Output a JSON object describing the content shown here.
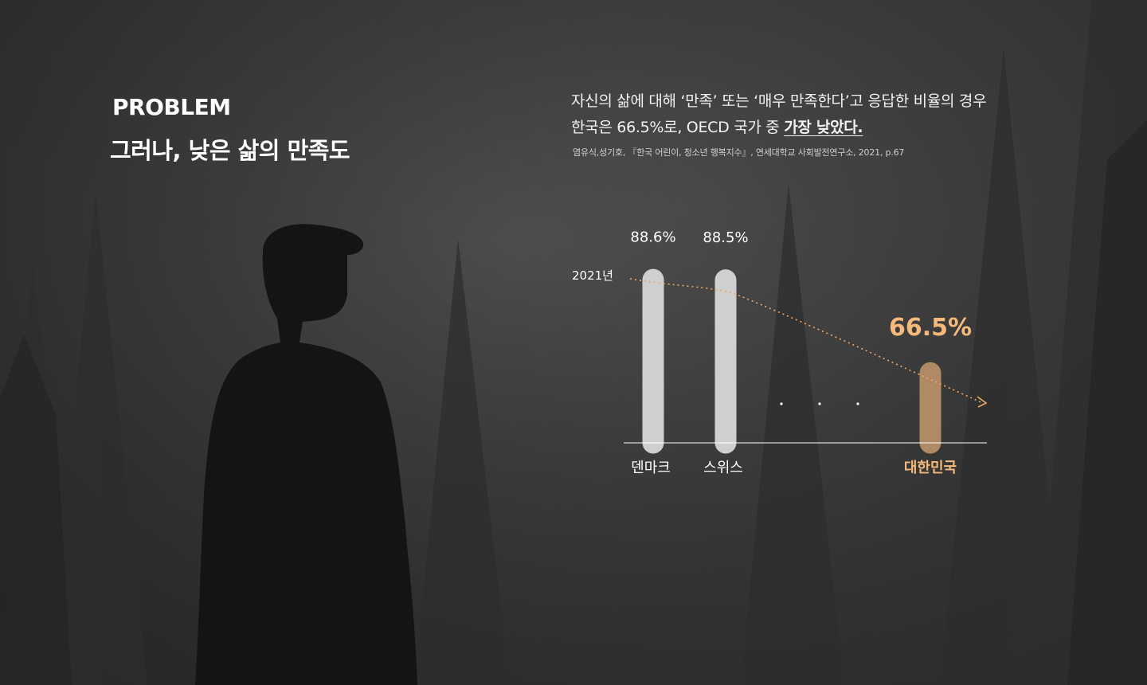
{
  "section": {
    "label": "PROBLEM",
    "title": "그러나, 낮은 삶의 만족도"
  },
  "description": {
    "line1": "자신의 삶에 대해 ‘만족’ 또는 ‘매우 만족한다’고 응답한 비율의 경우",
    "line2_prefix": "한국은 66.5%로, OECD 국가 중 ",
    "line2_emphasis": "가장 낮았다."
  },
  "source": "염유식,성기호, 『한국 어린이, 청소년 행복지수』, 연세대학교 사회발전연구소, 2021, p.67",
  "chart_data": {
    "type": "bar",
    "year_label": "2021년",
    "categories": [
      "덴마크",
      "스위스",
      "대한민국"
    ],
    "values": [
      88.6,
      88.5,
      66.5
    ],
    "value_labels": [
      "88.6%",
      "88.5%",
      "66.5%"
    ],
    "ellipsis": "· · ·",
    "highlight_index": 2,
    "colors": {
      "bar": "#cfcfcf",
      "highlight_bar": "#b08a64",
      "highlight_text": "#f5b97c",
      "trend": "#f0a868",
      "axis": "#ffffff"
    },
    "grid": false,
    "legend": false
  }
}
